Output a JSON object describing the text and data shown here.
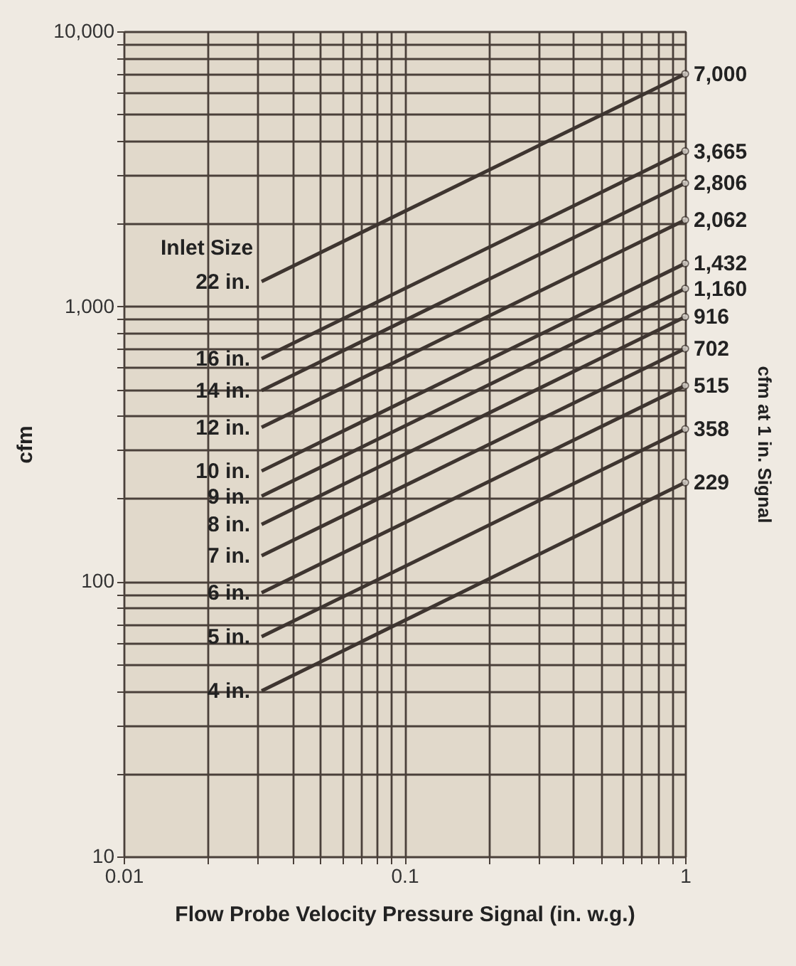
{
  "chart_data": {
    "type": "line",
    "xlabel": "Flow Probe Velocity Pressure Signal (in. w.g.)",
    "ylabel": "cfm",
    "y2label": "cfm at 1 in. Signal",
    "legend_title": "Inlet Size",
    "log": "xy",
    "grid": true,
    "legend": false,
    "x": [
      0.031,
      1
    ],
    "xlim": [
      0.01,
      1
    ],
    "xticks": [
      0.01,
      {
        "value": 0.02,
        "label": null
      },
      {
        "value": 0.03,
        "label": null
      },
      {
        "value": 0.04,
        "label": null
      },
      {
        "value": 0.05,
        "label": null
      },
      {
        "value": 0.06,
        "label": null
      },
      {
        "value": 0.07,
        "label": null
      },
      {
        "value": 0.08,
        "label": null
      },
      {
        "value": 0.09,
        "label": null
      },
      0.1,
      {
        "value": 0.2,
        "label": null
      },
      {
        "value": 0.3,
        "label": null
      },
      {
        "value": 0.4,
        "label": null
      },
      {
        "value": 0.5,
        "label": null
      },
      {
        "value": 0.6,
        "label": null
      },
      {
        "value": 0.7,
        "label": null
      },
      {
        "value": 0.8,
        "label": null
      },
      {
        "value": 0.9,
        "label": null
      },
      1
    ],
    "ylim": [
      10,
      10000
    ],
    "yticks": [
      10,
      {
        "value": 20,
        "label": null
      },
      {
        "value": 30,
        "label": null
      },
      {
        "value": 40,
        "label": null
      },
      {
        "value": 50,
        "label": null
      },
      {
        "value": 60,
        "label": null
      },
      {
        "value": 70,
        "label": null
      },
      {
        "value": 80,
        "label": null
      },
      {
        "value": 90,
        "label": null
      },
      100,
      {
        "value": 200,
        "label": null
      },
      {
        "value": 300,
        "label": null
      },
      {
        "value": 400,
        "label": null
      },
      {
        "value": 500,
        "label": null
      },
      {
        "value": 600,
        "label": null
      },
      {
        "value": 700,
        "label": null
      },
      {
        "value": 800,
        "label": null
      },
      {
        "value": 900,
        "label": null
      },
      {
        "value": 1000,
        "label": "1,000"
      },
      {
        "value": 2000,
        "label": null
      },
      {
        "value": 3000,
        "label": null
      },
      {
        "value": 4000,
        "label": null
      },
      {
        "value": 5000,
        "label": null
      },
      {
        "value": 6000,
        "label": null
      },
      {
        "value": 7000,
        "label": null
      },
      {
        "value": 8000,
        "label": null
      },
      {
        "value": 9000,
        "label": null
      },
      {
        "value": 10000,
        "label": "10,000"
      }
    ],
    "series": [
      {
        "name": "22 in.",
        "color": "#3e3530",
        "values": [
          1232,
          7000
        ],
        "value_labels": [
          null,
          "7,000"
        ]
      },
      {
        "name": "16 in.",
        "color": "#3e3530",
        "values": [
          645,
          3665
        ],
        "value_labels": [
          null,
          "3,665"
        ]
      },
      {
        "name": "14 in.",
        "color": "#3e3530",
        "values": [
          494,
          2806
        ],
        "value_labels": [
          null,
          "2,806"
        ]
      },
      {
        "name": "12 in.",
        "color": "#3e3530",
        "values": [
          363,
          2062
        ],
        "value_labels": [
          null,
          "2,062"
        ]
      },
      {
        "name": "10 in.",
        "color": "#3e3530",
        "values": [
          252,
          1432
        ],
        "value_labels": [
          null,
          "1,432"
        ]
      },
      {
        "name": "9 in.",
        "color": "#3e3530",
        "values": [
          204,
          1160
        ],
        "value_labels": [
          null,
          "1,160"
        ]
      },
      {
        "name": "8 in.",
        "color": "#3e3530",
        "values": [
          161,
          916
        ],
        "value_labels": [
          null,
          "916"
        ]
      },
      {
        "name": "7 in.",
        "color": "#3e3530",
        "values": [
          124,
          702
        ],
        "value_labels": [
          null,
          "702"
        ]
      },
      {
        "name": "6 in.",
        "color": "#3e3530",
        "values": [
          91,
          515
        ],
        "value_labels": [
          null,
          "515"
        ]
      },
      {
        "name": "5 in.",
        "color": "#3e3530",
        "values": [
          63,
          358
        ],
        "value_labels": [
          null,
          "358"
        ]
      },
      {
        "name": "4 in.",
        "color": "#3e3530",
        "values": [
          40,
          229
        ],
        "value_labels": [
          null,
          "229"
        ]
      }
    ]
  }
}
